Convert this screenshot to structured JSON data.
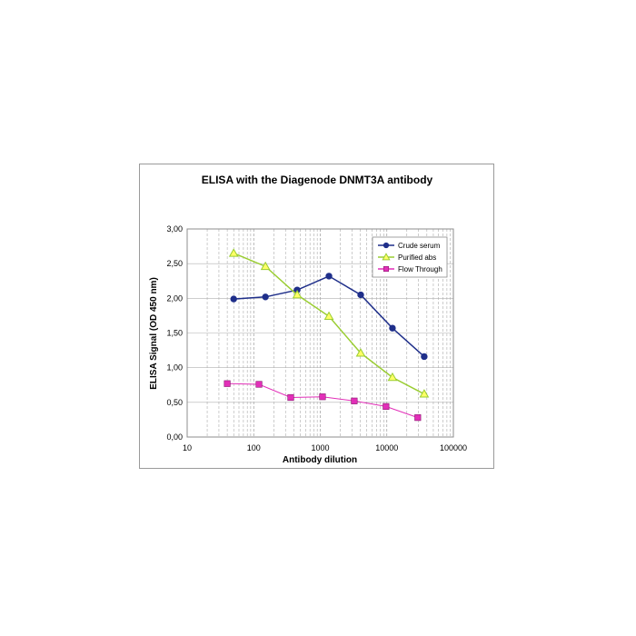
{
  "chart_data": {
    "type": "line",
    "title": "ELISA with the Diagenode DNMT3A antibody",
    "xlabel": "Antibody dilution",
    "ylabel": "ELISA Signal (OD 450 nm)",
    "x_scale": "log",
    "xlim": [
      10,
      100000
    ],
    "ylim": [
      0,
      3
    ],
    "x_ticks": [
      "10",
      "100",
      "1000",
      "10000",
      "100000"
    ],
    "y_ticks": [
      "0,00",
      "0,50",
      "1,00",
      "1,50",
      "2,00",
      "2,50",
      "3,00"
    ],
    "y_tick_values": [
      0,
      0.5,
      1,
      1.5,
      2,
      2.5,
      3
    ],
    "grid": "dashed vertical minor and major lines",
    "legend_position": "top-right",
    "series": [
      {
        "name": "Crude serum",
        "color": "#1f2f8a",
        "marker": "circle",
        "x": [
          50,
          150,
          450,
          1350,
          4050,
          12150,
          36450
        ],
        "y": [
          1.99,
          2.02,
          2.12,
          2.32,
          2.05,
          1.57,
          1.16
        ]
      },
      {
        "name": "Purified abs",
        "color": "#9acd32",
        "marker": "triangle",
        "x": [
          50,
          150,
          450,
          1350,
          4050,
          12150,
          36450
        ],
        "y": [
          2.65,
          2.46,
          2.05,
          1.74,
          1.21,
          0.86,
          0.62
        ]
      },
      {
        "name": "Flow Through",
        "color": "#e22fb8",
        "marker": "square",
        "x": [
          40,
          120,
          360,
          1080,
          3240,
          9720,
          29160
        ],
        "y": [
          0.77,
          0.76,
          0.57,
          0.58,
          0.52,
          0.44,
          0.28
        ]
      }
    ]
  }
}
